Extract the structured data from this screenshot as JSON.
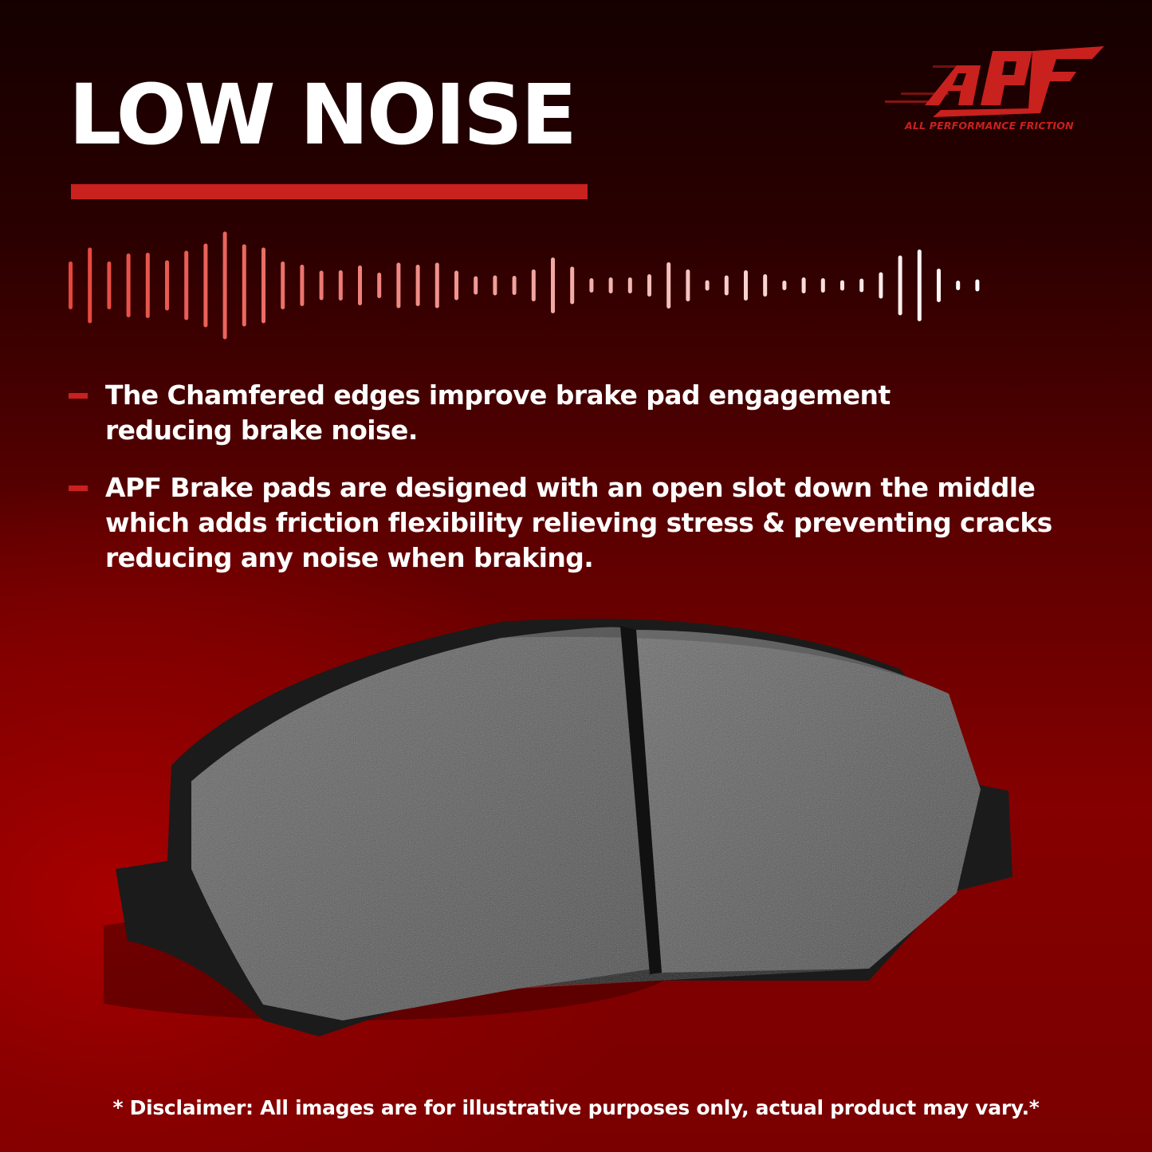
{
  "header": {
    "title": "LOW NOISE"
  },
  "brand": {
    "logo_text": "APF",
    "tagline": "ALL PERFORMANCE FRICTION",
    "color": "#c9211e"
  },
  "bullets": [
    {
      "text": "The Chamfered edges improve brake pad engagement reducing brake noise."
    },
    {
      "text": "APF Brake pads are designed with an open slot down the middle which adds friction flexibility relieving stress & preventing cracks reducing any noise when braking."
    }
  ],
  "disclaimer": "* Disclaimer: All images are for illustrative purposes only, actual product may vary.*",
  "icons": {
    "waveform": "sound-wave-icon",
    "product": "brake-pad-image"
  }
}
